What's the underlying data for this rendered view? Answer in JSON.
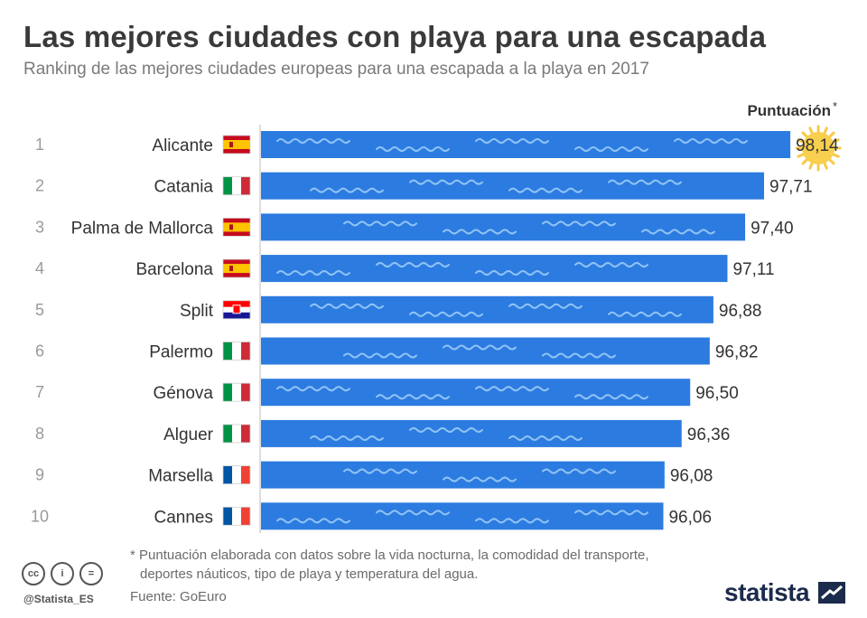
{
  "title": "Las mejores ciudades con playa para una escapada",
  "subtitle": "Ranking de las mejores ciudades europeas para una escapada a la playa en 2017",
  "chart_data": {
    "type": "bar",
    "orientation": "horizontal",
    "value_header": "Puntuación*",
    "categories": [
      "Alicante",
      "Catania",
      "Palma de Mallorca",
      "Barcelona",
      "Split",
      "Palermo",
      "Génova",
      "Alguer",
      "Marsella",
      "Cannes"
    ],
    "ranks": [
      "1",
      "2",
      "3",
      "4",
      "5",
      "6",
      "7",
      "8",
      "9",
      "10"
    ],
    "flags": [
      "spain",
      "italy",
      "spain",
      "spain",
      "croatia",
      "italy",
      "italy",
      "italy",
      "france",
      "france"
    ],
    "values": [
      98.14,
      97.71,
      97.4,
      97.11,
      96.88,
      96.82,
      96.5,
      96.36,
      96.08,
      96.06
    ],
    "value_labels": [
      "98,14",
      "97,71",
      "97,40",
      "97,11",
      "96,88",
      "96,82",
      "96,50",
      "96,36",
      "96,08",
      "96,06"
    ],
    "bar_color": "#2c7be0",
    "highlight_icon": "sun-icon"
  },
  "footnote_line1": "* Puntuación elaborada con datos sobre la vida nocturna, la comodidad del transporte,",
  "footnote_line2": "deportes náuticos, tipo de playa y temperatura del agua.",
  "source": "Fuente: GoEuro",
  "handle": "@Statista_ES",
  "brand": "statista",
  "license_icons": [
    "cc-icon",
    "by-icon",
    "nd-icon"
  ],
  "license_glyphs": [
    "cc",
    "i",
    "="
  ]
}
